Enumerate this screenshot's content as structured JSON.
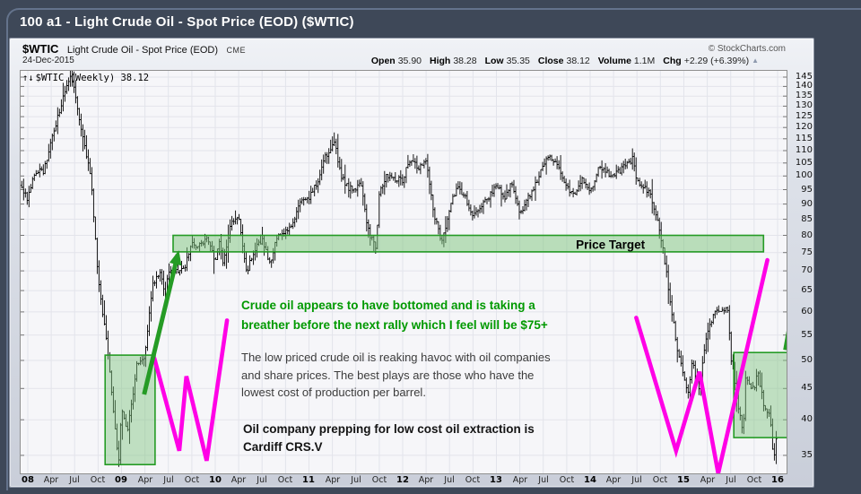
{
  "window": {
    "title": "100 a1 - Light Crude Oil - Spot Price (EOD) ($WTIC)"
  },
  "header": {
    "symbol": "$WTIC",
    "name": "Light Crude Oil - Spot Price (EOD)",
    "exchange": "CME",
    "copyright": "© StockCharts.com",
    "date": "24-Dec-2015",
    "quote": [
      {
        "label": "Open",
        "value": "35.90"
      },
      {
        "label": "High",
        "value": "38.28"
      },
      {
        "label": "Low",
        "value": "35.35"
      },
      {
        "label": "Close",
        "value": "38.12"
      },
      {
        "label": "Volume",
        "value": "1.1M"
      },
      {
        "label": "Chg",
        "value": "+2.29 (+6.39%)"
      }
    ],
    "chg_arrow": "▲"
  },
  "legend": {
    "icon": "↑↓",
    "text": "$WTIC (Weekly) 38.12"
  },
  "chart_data": {
    "type": "line",
    "subtype": "weekly-ohlc-bars",
    "title": "$WTIC (Weekly)",
    "last_close": 38.12,
    "y_axis": {
      "scale": "log",
      "range": [
        33,
        148
      ],
      "ticks": [
        145,
        140,
        135,
        130,
        125,
        120,
        115,
        110,
        105,
        100,
        95,
        90,
        85,
        80,
        75,
        70,
        65,
        60,
        55,
        50,
        45,
        40,
        35
      ]
    },
    "x_axis": {
      "unit": "months-since-Jan-2008",
      "ticks": [
        {
          "t": 0,
          "label": "08",
          "year": true
        },
        {
          "t": 3,
          "label": "Apr"
        },
        {
          "t": 6,
          "label": "Jul"
        },
        {
          "t": 9,
          "label": "Oct"
        },
        {
          "t": 12,
          "label": "09",
          "year": true
        },
        {
          "t": 15,
          "label": "Apr"
        },
        {
          "t": 18,
          "label": "Jul"
        },
        {
          "t": 21,
          "label": "Oct"
        },
        {
          "t": 24,
          "label": "10",
          "year": true
        },
        {
          "t": 27,
          "label": "Apr"
        },
        {
          "t": 30,
          "label": "Jul"
        },
        {
          "t": 33,
          "label": "Oct"
        },
        {
          "t": 36,
          "label": "11",
          "year": true
        },
        {
          "t": 39,
          "label": "Apr"
        },
        {
          "t": 42,
          "label": "Jul"
        },
        {
          "t": 45,
          "label": "Oct"
        },
        {
          "t": 48,
          "label": "12",
          "year": true
        },
        {
          "t": 51,
          "label": "Apr"
        },
        {
          "t": 54,
          "label": "Jul"
        },
        {
          "t": 57,
          "label": "Oct"
        },
        {
          "t": 60,
          "label": "13",
          "year": true
        },
        {
          "t": 63,
          "label": "Apr"
        },
        {
          "t": 66,
          "label": "Jul"
        },
        {
          "t": 69,
          "label": "Oct"
        },
        {
          "t": 72,
          "label": "14",
          "year": true
        },
        {
          "t": 75,
          "label": "Apr"
        },
        {
          "t": 78,
          "label": "Jul"
        },
        {
          "t": 81,
          "label": "Oct"
        },
        {
          "t": 84,
          "label": "15",
          "year": true
        },
        {
          "t": 87,
          "label": "Apr"
        },
        {
          "t": 90,
          "label": "Jul"
        },
        {
          "t": 93,
          "label": "Oct"
        },
        {
          "t": 96,
          "label": "16",
          "year": true
        }
      ]
    },
    "price_anchors": [
      [
        -1,
        96
      ],
      [
        0,
        91.7
      ],
      [
        1,
        101.8
      ],
      [
        2,
        101.6
      ],
      [
        3,
        113.5
      ],
      [
        4,
        127.4
      ],
      [
        5,
        140
      ],
      [
        5.6,
        145.3
      ],
      [
        6.5,
        124.1
      ],
      [
        7,
        115.5
      ],
      [
        8,
        100.6
      ],
      [
        9,
        67.8
      ],
      [
        10,
        54.4
      ],
      [
        11,
        40.8
      ],
      [
        11.6,
        33.6
      ],
      [
        12,
        41.7
      ],
      [
        12.8,
        38.5
      ],
      [
        13.7,
        46
      ],
      [
        14,
        49.7
      ],
      [
        15,
        51.1
      ],
      [
        16,
        66.3
      ],
      [
        17,
        69.9
      ],
      [
        17.6,
        63.5
      ],
      [
        18,
        69.5
      ],
      [
        19,
        70
      ],
      [
        20,
        70.6
      ],
      [
        21,
        77
      ],
      [
        22,
        77.3
      ],
      [
        23,
        79.4
      ],
      [
        24,
        72.9
      ],
      [
        24.5,
        78.5
      ],
      [
        25,
        71.5
      ],
      [
        26,
        83.8
      ],
      [
        27,
        86.2
      ],
      [
        28,
        69.5
      ],
      [
        29,
        75.6
      ],
      [
        30,
        78.9
      ],
      [
        31,
        71.9
      ],
      [
        32,
        80
      ],
      [
        33,
        81.4
      ],
      [
        34,
        84.1
      ],
      [
        35,
        91.4
      ],
      [
        36,
        92.2
      ],
      [
        37,
        96.9
      ],
      [
        38,
        106.7
      ],
      [
        39.3,
        114.2
      ],
      [
        40,
        100.9
      ],
      [
        41,
        95.4
      ],
      [
        42,
        95.7
      ],
      [
        42.6,
        98.5
      ],
      [
        43.5,
        82
      ],
      [
        44.6,
        75.5
      ],
      [
        45,
        93.2
      ],
      [
        46,
        100.4
      ],
      [
        47,
        98.8
      ],
      [
        48,
        98.5
      ],
      [
        49,
        107.1
      ],
      [
        50,
        103
      ],
      [
        51,
        104.9
      ],
      [
        52,
        86.5
      ],
      [
        53,
        78
      ],
      [
        54,
        88.1
      ],
      [
        55,
        96.5
      ],
      [
        56,
        92.2
      ],
      [
        57,
        86.2
      ],
      [
        58,
        88.9
      ],
      [
        59,
        91.8
      ],
      [
        60,
        97.5
      ],
      [
        61,
        92.1
      ],
      [
        62,
        97.2
      ],
      [
        63,
        86.8
      ],
      [
        64,
        92
      ],
      [
        65,
        96.6
      ],
      [
        66,
        105
      ],
      [
        67,
        107.7
      ],
      [
        68,
        102.3
      ],
      [
        69,
        96.4
      ],
      [
        70,
        92.7
      ],
      [
        71,
        98.4
      ],
      [
        72,
        94
      ],
      [
        73,
        102.6
      ],
      [
        74,
        101.6
      ],
      [
        75,
        99.7
      ],
      [
        76,
        102.7
      ],
      [
        77.5,
        106.9
      ],
      [
        78,
        98.2
      ],
      [
        79,
        95.9
      ],
      [
        80,
        91.2
      ],
      [
        81,
        80.5
      ],
      [
        82,
        66.2
      ],
      [
        83,
        53.3
      ],
      [
        84,
        46.5
      ],
      [
        84.6,
        44.3
      ],
      [
        85,
        49.8
      ],
      [
        86,
        44.9
      ],
      [
        87,
        55.5
      ],
      [
        88,
        60.3
      ],
      [
        89,
        59.8
      ],
      [
        89.6,
        61
      ],
      [
        90,
        51
      ],
      [
        90.8,
        43
      ],
      [
        91.6,
        38
      ],
      [
        91.9,
        46.8
      ],
      [
        92.5,
        44.9
      ],
      [
        93,
        45.1
      ],
      [
        93.5,
        48
      ],
      [
        94.2,
        42
      ],
      [
        95,
        40.5
      ],
      [
        95.35,
        36.2
      ],
      [
        95.6,
        34.8
      ],
      [
        95.85,
        38.1
      ]
    ],
    "bar_color": "#000000",
    "grid_color": "#e3e4eb"
  },
  "annotations": {
    "green": "#259b25",
    "green_fill": "#7cc47c",
    "magenta": "#ff00e6",
    "price_target_band": {
      "t1": 18.6,
      "t2": 94.2,
      "price_top": 80,
      "price_bottom": 75.2,
      "label": "Price Target",
      "label_t": 74.6,
      "label_price": 76
    },
    "support_boxes": [
      {
        "t1": 9.9,
        "t2": 16.3,
        "price_top": 51,
        "price_bottom": 33.8
      },
      {
        "t1": 90.4,
        "t2": 97.3,
        "price_top": 51.5,
        "price_bottom": 37.4
      }
    ],
    "zigzags": [
      {
        "points": [
          [
            16.2,
            50.4
          ],
          [
            19.4,
            35.6
          ],
          [
            20.3,
            47.1
          ],
          [
            22.9,
            34.3
          ],
          [
            25.5,
            58.1
          ]
        ]
      },
      {
        "points": [
          [
            77.9,
            58.7
          ],
          [
            83.0,
            35.6
          ],
          [
            86.0,
            47.9
          ],
          [
            88.4,
            32.7
          ],
          [
            94.7,
            72.9
          ]
        ]
      }
    ],
    "arrows": [
      {
        "from": [
          14.9,
          44.0
        ],
        "to": [
          19.2,
          74.4
        ]
      },
      {
        "from": [
          97.0,
          52.0
        ],
        "to": [
          99.2,
          74.6
        ]
      }
    ],
    "texts": {
      "note_green": {
        "lines": [
          "Crude oil appears to have bottomed and is taking a",
          "breather before the next rally which I feel will be $75+"
        ]
      },
      "note_plain": {
        "lines": [
          "The low priced crude oil is reaking havoc with oil companies",
          "and share prices. The best plays are those who have the",
          "lowest cost of production per barrel."
        ]
      },
      "note_bold": {
        "lines": [
          "Oil company prepping for low cost oil extraction is",
          "Cardiff CRS.V"
        ]
      }
    }
  }
}
